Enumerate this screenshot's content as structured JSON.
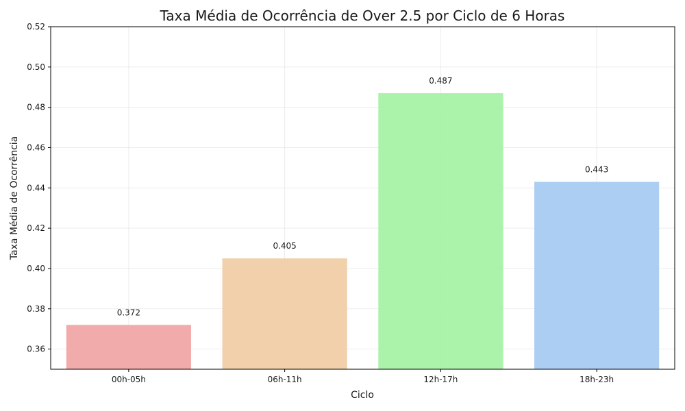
{
  "chart_data": {
    "type": "bar",
    "title": "Taxa Média de Ocorrência de Over 2.5 por Ciclo de 6 Horas",
    "xlabel": "Ciclo",
    "ylabel": "Taxa Média de Ocorrência",
    "categories": [
      "00h-05h",
      "06h-11h",
      "12h-17h",
      "18h-23h"
    ],
    "values": [
      0.372,
      0.405,
      0.487,
      0.443
    ],
    "data_labels": [
      "0.372",
      "0.405",
      "0.487",
      "0.443"
    ],
    "colors": [
      "#f1a6a6",
      "#f0cda6",
      "#a6f1a6",
      "#a6cbf1"
    ],
    "ylim": [
      0.35,
      0.52
    ],
    "yticks": [
      0.36,
      0.38,
      0.4,
      0.42,
      0.44,
      0.46,
      0.48,
      0.5,
      0.52
    ],
    "ytick_labels": [
      "0.36",
      "0.38",
      "0.40",
      "0.42",
      "0.44",
      "0.46",
      "0.48",
      "0.50",
      "0.52"
    ],
    "grid": true
  }
}
